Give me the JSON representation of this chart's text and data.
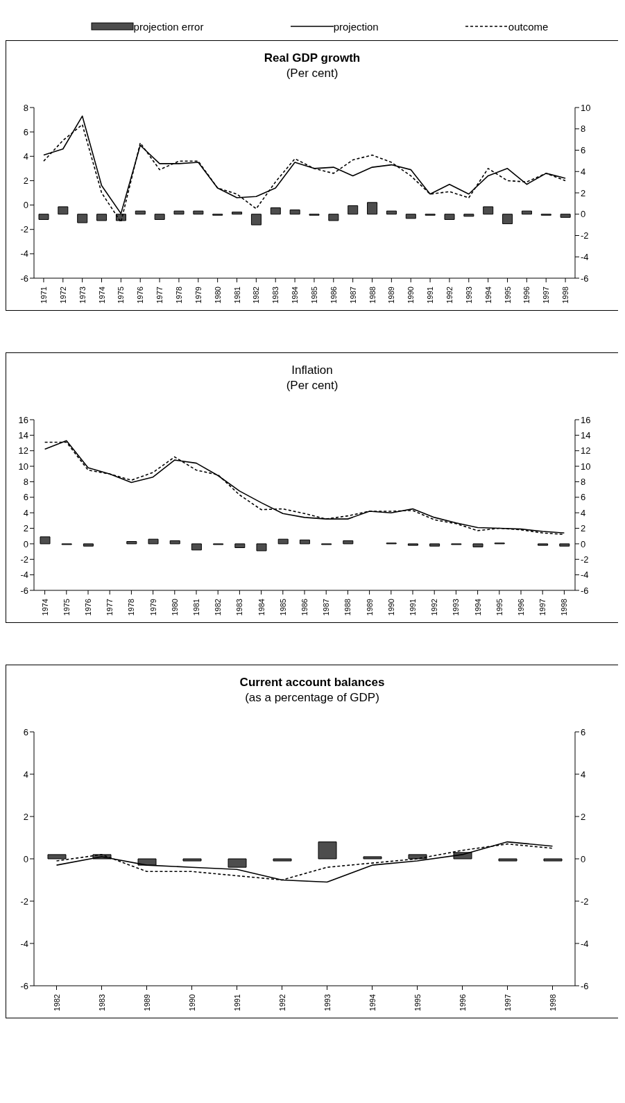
{
  "chart_data": [
    {
      "type": "bar",
      "title": "Real GDP growth",
      "subtitle": "(Per cent)",
      "legend": "top",
      "categories": [
        "1971",
        "1972",
        "1973",
        "1974",
        "1975",
        "1976",
        "1977",
        "1978",
        "1979",
        "1980",
        "1981",
        "1982",
        "1983",
        "1984",
        "1985",
        "1986",
        "1987",
        "1988",
        "1989",
        "1990",
        "1991",
        "1992",
        "1993",
        "1994",
        "1995",
        "1996",
        "1997",
        "1998"
      ],
      "ylim": [
        -6,
        8
      ],
      "yticks": [
        -6,
        -4,
        -2,
        0,
        2,
        4,
        6,
        8
      ],
      "y2lim": [
        -6,
        10
      ],
      "y2ticks": [
        -6,
        -4,
        -2,
        0,
        2,
        4,
        6,
        8,
        10
      ],
      "series": [
        {
          "name": "projection error",
          "axis": "y2",
          "color": "#4d4d4d",
          "values": [
            -0.5,
            0.7,
            -0.8,
            -0.6,
            -0.6,
            0.3,
            -0.5,
            0.3,
            0.3,
            -0.1,
            0.2,
            -1.0,
            0.6,
            0.4,
            -0.1,
            -0.6,
            0.8,
            1.1,
            0.3,
            -0.4,
            -0.1,
            -0.5,
            -0.2,
            0.7,
            -0.9,
            0.3,
            -0.1,
            -0.3
          ]
        },
        {
          "name": "projection",
          "type": "line",
          "line_style": "solid",
          "color": "#000000",
          "values": [
            4.1,
            4.6,
            7.3,
            1.6,
            -0.7,
            4.9,
            3.4,
            3.4,
            3.5,
            1.4,
            0.6,
            0.7,
            1.4,
            3.5,
            3.0,
            3.1,
            2.4,
            3.1,
            3.3,
            2.9,
            0.9,
            1.7,
            0.9,
            2.4,
            3.0,
            1.7,
            2.6,
            2.2
          ]
        },
        {
          "name": "outcome",
          "type": "line",
          "line_style": "dashed",
          "color": "#000000",
          "values": [
            3.6,
            5.3,
            6.6,
            1.0,
            -1.4,
            5.1,
            2.9,
            3.6,
            3.6,
            1.4,
            0.9,
            -0.3,
            1.9,
            3.8,
            3.0,
            2.6,
            3.7,
            4.1,
            3.5,
            2.4,
            0.9,
            1.1,
            0.6,
            3.0,
            2.0,
            1.9,
            2.6,
            2.0
          ]
        }
      ]
    },
    {
      "type": "bar",
      "title": "Inflation",
      "subtitle": "(Per cent)",
      "categories": [
        "1974",
        "1975",
        "1976",
        "1977",
        "1978",
        "1979",
        "1980",
        "1981",
        "1982",
        "1983",
        "1984",
        "1985",
        "1986",
        "1987",
        "1988",
        "1989",
        "1990",
        "1991",
        "1992",
        "1993",
        "1994",
        "1995",
        "1996",
        "1997",
        "1998"
      ],
      "ylim": [
        -6,
        16
      ],
      "yticks": [
        -6,
        -4,
        -2,
        0,
        2,
        4,
        6,
        8,
        10,
        12,
        14,
        16
      ],
      "y2lim": [
        -6,
        16
      ],
      "y2ticks": [
        -6,
        -4,
        -2,
        0,
        2,
        4,
        6,
        8,
        10,
        12,
        14,
        16
      ],
      "series": [
        {
          "axis": "y2",
          "color": "#4d4d4d",
          "values": [
            0.9,
            -0.1,
            -0.3,
            0,
            0.3,
            0.6,
            0.4,
            -0.8,
            -0.1,
            -0.5,
            -0.9,
            0.6,
            0.5,
            -0.1,
            0.4,
            0,
            0.1,
            -0.2,
            -0.3,
            -0.1,
            -0.4,
            0.1,
            0,
            -0.2,
            -0.3
          ]
        },
        {
          "type": "line",
          "line_style": "solid",
          "color": "#000000",
          "values": [
            12.2,
            13.3,
            9.8,
            9.0,
            7.9,
            8.6,
            10.8,
            10.4,
            8.8,
            6.8,
            5.3,
            3.9,
            3.4,
            3.2,
            3.2,
            4.2,
            4.0,
            4.5,
            3.4,
            2.7,
            2.1,
            2.0,
            1.9,
            1.6,
            1.4
          ]
        },
        {
          "type": "line",
          "line_style": "dashed",
          "color": "#000000",
          "values": [
            13.1,
            13.1,
            9.5,
            9.0,
            8.2,
            9.2,
            11.2,
            9.5,
            8.9,
            6.3,
            4.4,
            4.5,
            3.9,
            3.2,
            3.6,
            4.2,
            4.2,
            4.3,
            3.1,
            2.6,
            1.7,
            2.0,
            1.8,
            1.4,
            1.2
          ]
        }
      ]
    },
    {
      "type": "bar",
      "title": "Current account balances",
      "subtitle": "(as a percentage of GDP)",
      "categories": [
        "1982",
        "1983",
        "1989",
        "1990",
        "1991",
        "1992",
        "1993",
        "1994",
        "1995",
        "1996",
        "1997",
        "1998"
      ],
      "ylim": [
        -6,
        6
      ],
      "yticks": [
        -6,
        -4,
        -2,
        0,
        2,
        4,
        6
      ],
      "y2lim": [
        -6,
        6
      ],
      "y2ticks": [
        -6,
        -4,
        -2,
        0,
        2,
        4,
        6
      ],
      "series": [
        {
          "axis": "y2",
          "color": "#4d4d4d",
          "values": [
            0.2,
            0.2,
            -0.3,
            -0.1,
            -0.4,
            -0.1,
            0.8,
            0.1,
            0.2,
            0.3,
            -0.1,
            -0.1
          ]
        },
        {
          "type": "line",
          "line_style": "solid",
          "color": "#000000",
          "values": [
            -0.3,
            0.1,
            -0.3,
            -0.4,
            -0.5,
            -1.0,
            -1.1,
            -0.3,
            -0.1,
            0.2,
            0.8,
            0.6
          ]
        },
        {
          "type": "line",
          "line_style": "dashed",
          "color": "#000000",
          "values": [
            -0.1,
            0.2,
            -0.6,
            -0.6,
            -0.8,
            -1.0,
            -0.4,
            -0.2,
            0.0,
            0.4,
            0.7,
            0.5
          ]
        }
      ]
    }
  ]
}
